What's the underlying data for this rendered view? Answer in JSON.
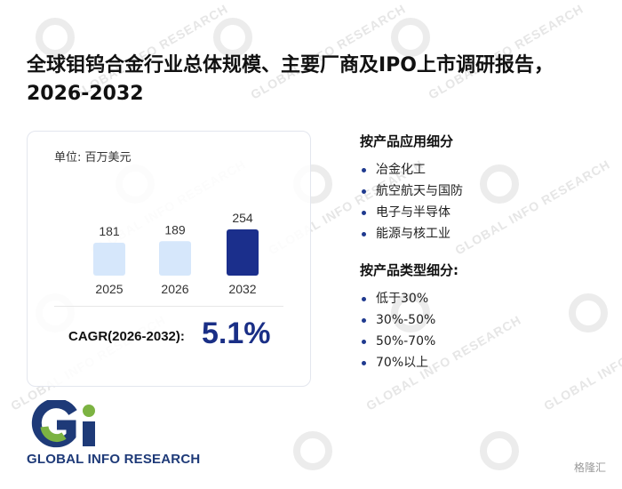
{
  "title": "全球钼钨合金行业总体规模、主要厂商及IPO上市调研报告，2026-2032",
  "watermark_text": "GLOBAL INFO RESEARCH",
  "card": {
    "unit_label": "单位: 百万美元",
    "cagr_label": "CAGR(2026-2032):",
    "cagr_value": "5.1%"
  },
  "chart_data": {
    "type": "bar",
    "categories": [
      "2025",
      "2026",
      "2032"
    ],
    "values": [
      181,
      189,
      254
    ],
    "colors": [
      "#d6e7fb",
      "#d6e7fb",
      "#1b2f8c"
    ],
    "title": "",
    "xlabel": "",
    "ylabel": ""
  },
  "segments": {
    "application": {
      "heading": "按产品应用细分",
      "items": [
        "冶金化工",
        "航空航天与国防",
        "电子与半导体",
        "能源与核工业"
      ]
    },
    "type": {
      "heading": "按产品类型细分:",
      "items": [
        "低于30%",
        "30%-50%",
        "50%-70%",
        "70%以上"
      ]
    }
  },
  "brand": {
    "name": "GLOBAL INFO RESEARCH",
    "colors": {
      "green": "#7cb342",
      "blue": "#1e3a78"
    }
  },
  "corner_text": "格隆汇"
}
